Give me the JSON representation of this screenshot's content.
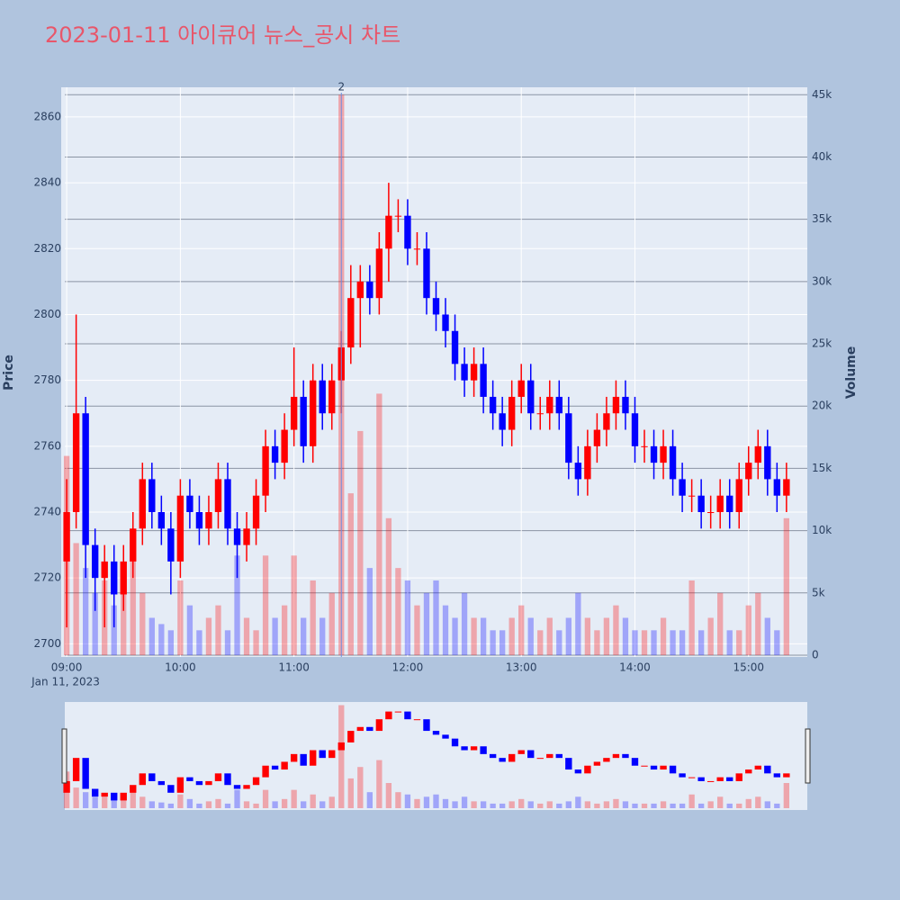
{
  "chart_data": {
    "type": "candlestick",
    "title": "2023-01-11 아이큐어 뉴스_공시 차트",
    "y_label": "Price",
    "y2_label": "Volume",
    "x_sublabel": "Jan 11, 2023",
    "increasing_color": "#ff0000",
    "decreasing_color": "#0000ff",
    "x": [
      "09:00",
      "09:05",
      "09:10",
      "09:15",
      "09:20",
      "09:25",
      "09:30",
      "09:35",
      "09:40",
      "09:45",
      "09:50",
      "09:55",
      "10:00",
      "10:05",
      "10:10",
      "10:15",
      "10:20",
      "10:25",
      "10:30",
      "10:35",
      "10:40",
      "10:45",
      "10:50",
      "10:55",
      "11:00",
      "11:05",
      "11:10",
      "11:15",
      "11:20",
      "11:25",
      "11:30",
      "11:35",
      "11:40",
      "11:45",
      "11:50",
      "11:55",
      "12:00",
      "12:05",
      "12:10",
      "12:15",
      "12:20",
      "12:25",
      "12:30",
      "12:35",
      "12:40",
      "12:45",
      "12:50",
      "12:55",
      "13:00",
      "13:05",
      "13:10",
      "13:15",
      "13:20",
      "13:25",
      "13:30",
      "13:35",
      "13:40",
      "13:45",
      "13:50",
      "13:55",
      "14:00",
      "14:05",
      "14:10",
      "14:15",
      "14:20",
      "14:25",
      "14:30",
      "14:35",
      "14:40",
      "14:45",
      "14:50",
      "14:55",
      "15:00",
      "15:05",
      "15:10",
      "15:15",
      "15:20"
    ],
    "open": [
      2725,
      2740,
      2770,
      2730,
      2720,
      2725,
      2715,
      2725,
      2735,
      2750,
      2740,
      2735,
      2725,
      2745,
      2740,
      2735,
      2740,
      2750,
      2735,
      2730,
      2735,
      2745,
      2760,
      2755,
      2765,
      2775,
      2760,
      2780,
      2770,
      2780,
      2790,
      2805,
      2810,
      2805,
      2820,
      2830,
      2830,
      2820,
      2820,
      2805,
      2800,
      2795,
      2785,
      2780,
      2785,
      2775,
      2770,
      2765,
      2775,
      2780,
      2770,
      2770,
      2775,
      2770,
      2755,
      2750,
      2760,
      2765,
      2770,
      2775,
      2770,
      2760,
      2760,
      2755,
      2760,
      2750,
      2745,
      2745,
      2740,
      2740,
      2745,
      2740,
      2750,
      2755,
      2760,
      2750,
      2745
    ],
    "high": [
      2750,
      2800,
      2775,
      2735,
      2730,
      2730,
      2730,
      2740,
      2755,
      2755,
      2745,
      2740,
      2750,
      2750,
      2745,
      2745,
      2755,
      2755,
      2740,
      2740,
      2750,
      2765,
      2765,
      2770,
      2790,
      2780,
      2785,
      2785,
      2785,
      2795,
      2815,
      2815,
      2815,
      2825,
      2840,
      2835,
      2835,
      2825,
      2825,
      2810,
      2805,
      2800,
      2790,
      2790,
      2790,
      2780,
      2775,
      2780,
      2785,
      2785,
      2775,
      2780,
      2780,
      2775,
      2760,
      2765,
      2770,
      2775,
      2780,
      2780,
      2775,
      2765,
      2765,
      2765,
      2765,
      2755,
      2750,
      2750,
      2745,
      2750,
      2750,
      2755,
      2760,
      2765,
      2765,
      2755,
      2755
    ],
    "low": [
      2705,
      2735,
      2720,
      2710,
      2705,
      2705,
      2710,
      2720,
      2730,
      2735,
      2730,
      2715,
      2720,
      2735,
      2730,
      2730,
      2735,
      2730,
      2720,
      2725,
      2730,
      2740,
      2750,
      2750,
      2760,
      2755,
      2755,
      2765,
      2765,
      2770,
      2785,
      2790,
      2800,
      2800,
      2810,
      2825,
      2815,
      2815,
      2800,
      2795,
      2790,
      2780,
      2775,
      2775,
      2770,
      2765,
      2760,
      2760,
      2770,
      2765,
      2765,
      2765,
      2765,
      2750,
      2745,
      2745,
      2755,
      2760,
      2765,
      2765,
      2755,
      2755,
      2750,
      2750,
      2745,
      2740,
      2740,
      2735,
      2735,
      2735,
      2735,
      2735,
      2745,
      2750,
      2745,
      2740,
      2740
    ],
    "close": [
      2740,
      2770,
      2730,
      2720,
      2725,
      2715,
      2725,
      2735,
      2750,
      2740,
      2735,
      2725,
      2745,
      2740,
      2735,
      2740,
      2750,
      2735,
      2730,
      2735,
      2745,
      2760,
      2755,
      2765,
      2775,
      2760,
      2780,
      2770,
      2780,
      2790,
      2805,
      2810,
      2805,
      2820,
      2830,
      2830,
      2820,
      2820,
      2805,
      2800,
      2795,
      2785,
      2780,
      2785,
      2775,
      2770,
      2765,
      2775,
      2780,
      2770,
      2770,
      2775,
      2770,
      2755,
      2750,
      2760,
      2765,
      2770,
      2775,
      2770,
      2760,
      2760,
      2755,
      2760,
      2750,
      2745,
      2745,
      2740,
      2740,
      2745,
      2740,
      2750,
      2755,
      2760,
      2750,
      2745,
      2750
    ],
    "volume": [
      16000,
      9000,
      7000,
      5000,
      6000,
      4000,
      5000,
      8000,
      5000,
      3000,
      2500,
      2000,
      6000,
      4000,
      2000,
      3000,
      4000,
      2000,
      8000,
      3000,
      2000,
      8000,
      3000,
      4000,
      8000,
      3000,
      6000,
      3000,
      5000,
      45000,
      13000,
      18000,
      7000,
      21000,
      11000,
      7000,
      6000,
      4000,
      5000,
      6000,
      4000,
      3000,
      5000,
      3000,
      3000,
      2000,
      2000,
      3000,
      4000,
      3000,
      2000,
      3000,
      2000,
      3000,
      5000,
      3000,
      2000,
      3000,
      4000,
      3000,
      2000,
      2000,
      2000,
      3000,
      2000,
      2000,
      6000,
      2000,
      3000,
      5000,
      2000,
      2000,
      4000,
      5000,
      3000,
      2000,
      11000
    ],
    "xlim": [
      "08:59",
      "15:31"
    ],
    "xticks": [
      "09:00",
      "10:00",
      "11:00",
      "12:00",
      "13:00",
      "14:00",
      "15:00"
    ],
    "ylim": [
      2696,
      2869
    ],
    "yticks": [
      2700,
      2720,
      2740,
      2760,
      2780,
      2800,
      2820,
      2840,
      2860
    ],
    "y2lim": [
      -145,
      45600
    ],
    "y2ticks": [
      {
        "value": 0,
        "label": "0"
      },
      {
        "value": 5000,
        "label": "5k"
      },
      {
        "value": 10000,
        "label": "10k"
      },
      {
        "value": 15000,
        "label": "15k"
      },
      {
        "value": 20000,
        "label": "20k"
      },
      {
        "value": 25000,
        "label": "25k"
      },
      {
        "value": 30000,
        "label": "30k"
      },
      {
        "value": 35000,
        "label": "35k"
      },
      {
        "value": 40000,
        "label": "40k"
      },
      {
        "value": 45000,
        "label": "45k"
      }
    ],
    "annotation": {
      "x": "11:25",
      "text": "2"
    },
    "grid": true,
    "rangeslider": true
  }
}
